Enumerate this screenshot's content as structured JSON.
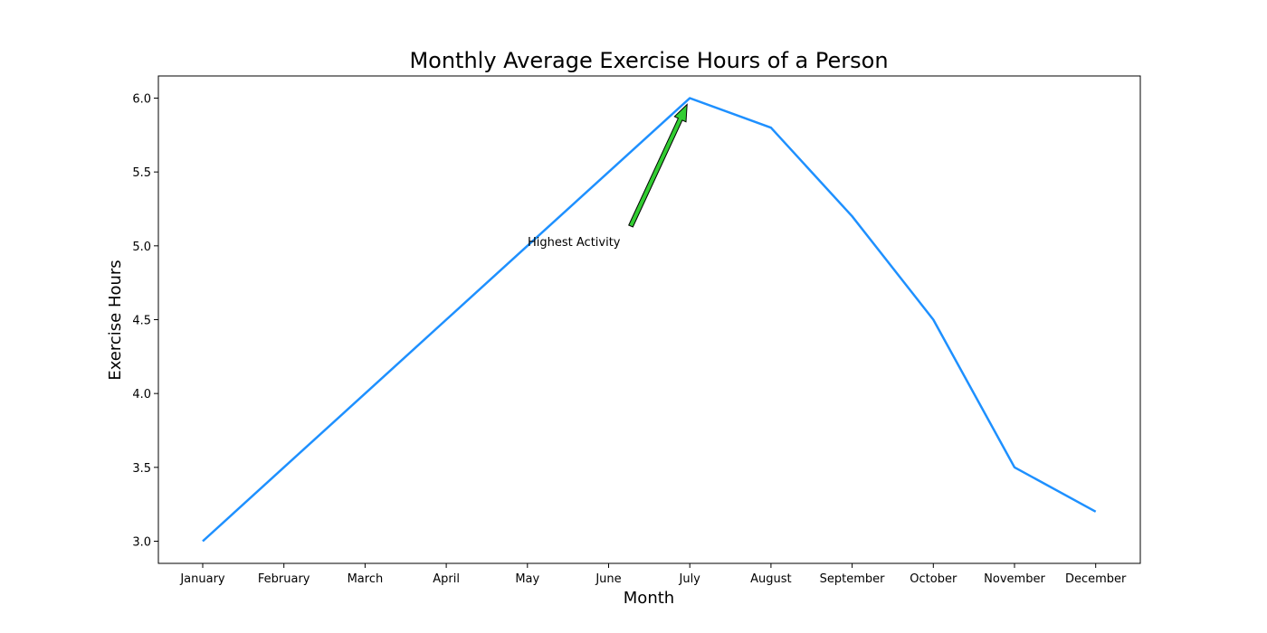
{
  "chart_data": {
    "type": "line",
    "title": "Monthly Average Exercise Hours of a Person",
    "xlabel": "Month",
    "ylabel": "Exercise Hours",
    "categories": [
      "January",
      "February",
      "March",
      "April",
      "May",
      "June",
      "July",
      "August",
      "September",
      "October",
      "November",
      "December"
    ],
    "series": [
      {
        "values": [
          3.0,
          3.5,
          4.0,
          4.5,
          5.0,
          5.5,
          6.0,
          5.8,
          5.2,
          4.5,
          3.5,
          3.2
        ],
        "color": "#1e90ff"
      }
    ],
    "ylim": [
      2.85,
      6.15
    ],
    "yticks": [
      "3.0",
      "3.5",
      "4.0",
      "4.5",
      "5.0",
      "5.5",
      "6.0"
    ],
    "grid": false,
    "annotation": {
      "text": "Highest Activity",
      "point": {
        "x": "July",
        "y": 6.0
      },
      "arrow_color": "#32cd32"
    }
  }
}
